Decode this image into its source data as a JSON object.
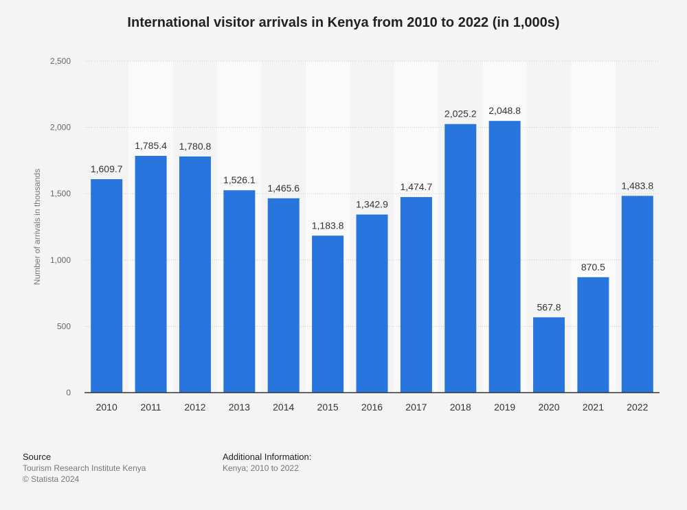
{
  "chart_data": {
    "type": "bar",
    "title": "International visitor arrivals in Kenya from 2010 to 2022 (in 1,000s)",
    "xlabel": "",
    "ylabel": "Number of arrivals in thousands",
    "categories": [
      "2010",
      "2011",
      "2012",
      "2013",
      "2014",
      "2015",
      "2016",
      "2017",
      "2018",
      "2019",
      "2020",
      "2021",
      "2022"
    ],
    "values": [
      1609.7,
      1785.4,
      1780.8,
      1526.1,
      1465.6,
      1183.8,
      1342.9,
      1474.7,
      2025.2,
      2048.8,
      567.8,
      870.5,
      1483.8
    ],
    "value_labels": [
      "1,609.7",
      "1,785.4",
      "1,780.8",
      "1,526.1",
      "1,465.6",
      "1,183.8",
      "1,342.9",
      "1,474.7",
      "2,025.2",
      "2,048.8",
      "567.8",
      "870.5",
      "1,483.8"
    ],
    "ylim": [
      0,
      2500
    ],
    "yticks": [
      0,
      500,
      1000,
      1500,
      2000,
      2500
    ],
    "ytick_labels": [
      "0",
      "500",
      "1,000",
      "1,500",
      "2,000",
      "2,500"
    ],
    "grid": true,
    "bar_color": "#2875de"
  },
  "footer": {
    "source_heading": "Source",
    "source_lines": [
      "Tourism Research Institute Kenya",
      "© Statista 2024"
    ],
    "info_heading": "Additional Information:",
    "info_lines": [
      "Kenya; 2010 to 2022"
    ]
  }
}
